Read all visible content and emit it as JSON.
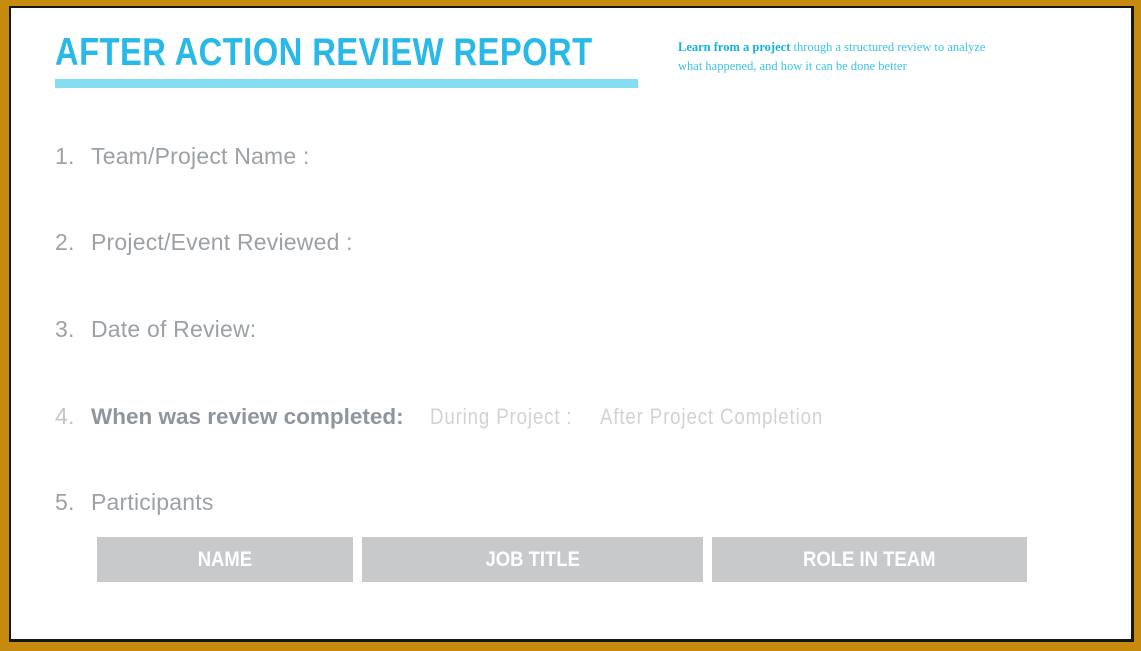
{
  "colors": {
    "frame_gold": "#C68A0C",
    "frame_line": "#161616",
    "title_cyan": "#29B9E8",
    "underline_cyan": "#84DDF3",
    "tagline_cyan": "#3BC3E5",
    "tagline_lead_cyan": "#12B3DF",
    "item_gray": "#9CA1A6",
    "item4_label_gray": "#8F959C",
    "item4_number_gray": "#C2C6CA",
    "option_gray": "#D0D3D6",
    "header_cell_bg": "#C7C9CB",
    "header_cell_text": "#FFFFFF"
  },
  "header": {
    "title": "AFTER ACTION REVIEW REPORT",
    "tagline_lead": "Learn from a project",
    "tagline_rest": " through a structured review to analyze what happened, and how it can be done better"
  },
  "items": [
    {
      "number": "1.",
      "label": "Team/Project Name :"
    },
    {
      "number": "2.",
      "label": "Project/Event Reviewed :"
    },
    {
      "number": "3.",
      "label": "Date of Review:"
    },
    {
      "number": "4.",
      "label": "When was review completed:",
      "options": [
        "During Project :",
        "After Project Completion"
      ]
    },
    {
      "number": "5.",
      "label": "Participants"
    }
  ],
  "participants_table": {
    "headers": [
      "NAME",
      "JOB TITLE",
      "ROLE IN TEAM"
    ]
  }
}
